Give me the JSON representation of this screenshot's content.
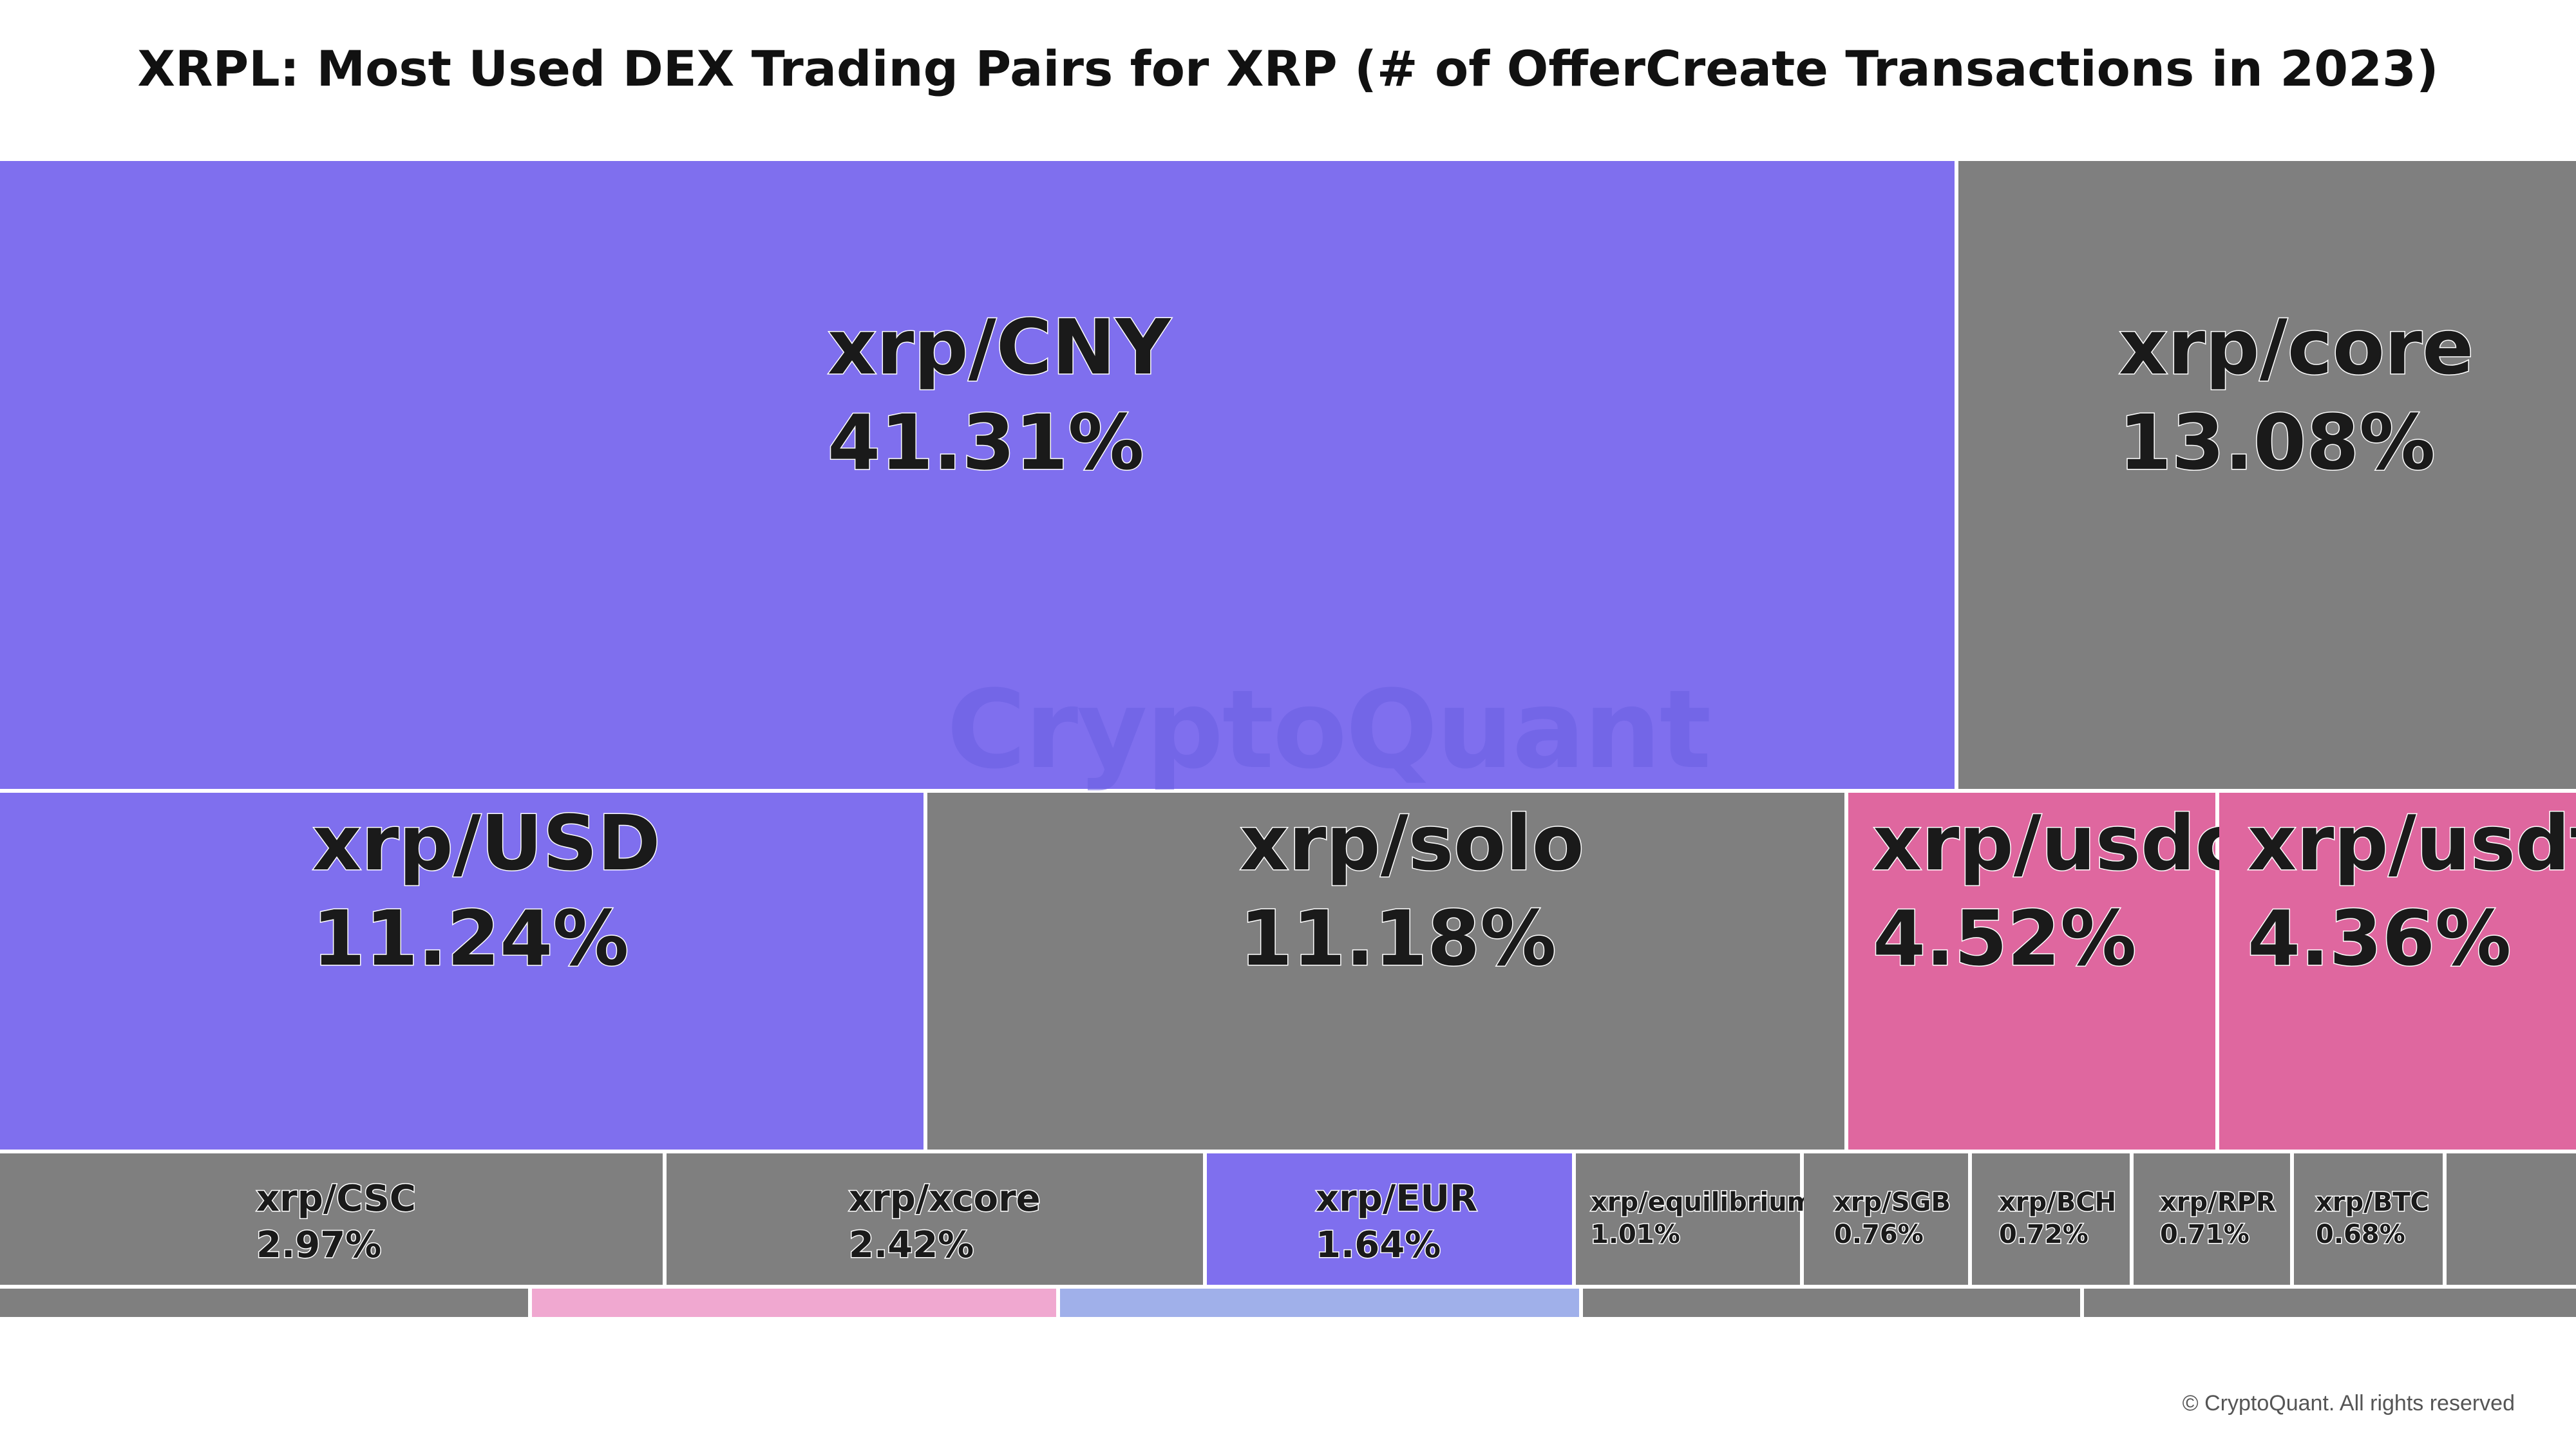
{
  "chart_data": {
    "type": "treemap",
    "title": "XRPL: Most Used DEX Trading Pairs for XRP (# of OfferCreate Transactions in 2023)",
    "unit": "% of OfferCreate Transactions",
    "items": [
      {
        "name": "xrp/CNY",
        "value": 41.31,
        "label": "41.31%",
        "color": "#7f6fee"
      },
      {
        "name": "xrp/core",
        "value": 13.08,
        "label": "13.08%",
        "color": "#7f7f7f"
      },
      {
        "name": "xrp/USD",
        "value": 11.24,
        "label": "11.24%",
        "color": "#7f6fee"
      },
      {
        "name": "xrp/solo",
        "value": 11.18,
        "label": "11.18%",
        "color": "#7f7f7f"
      },
      {
        "name": "xrp/usdc",
        "value": 4.52,
        "label": "4.52%",
        "color": "#df679f"
      },
      {
        "name": "xrp/usdt",
        "value": 4.36,
        "label": "4.36%",
        "color": "#df679f"
      },
      {
        "name": "xrp/CSC",
        "value": 2.97,
        "label": "2.97%",
        "color": "#7f7f7f"
      },
      {
        "name": "xrp/xcore",
        "value": 2.42,
        "label": "2.42%",
        "color": "#7f7f7f"
      },
      {
        "name": "xrp/EUR",
        "value": 1.64,
        "label": "1.64%",
        "color": "#7f6fee"
      },
      {
        "name": "xrp/equilibrium",
        "value": 1.01,
        "label": "1.01%",
        "color": "#7f7f7f"
      },
      {
        "name": "xrp/SGB",
        "value": 0.76,
        "label": "0.76%",
        "color": "#7f7f7f"
      },
      {
        "name": "xrp/BCH",
        "value": 0.72,
        "label": "0.72%",
        "color": "#7f7f7f"
      },
      {
        "name": "xrp/RPR",
        "value": 0.71,
        "label": "0.71%",
        "color": "#7f7f7f"
      },
      {
        "name": "xrp/BTC",
        "value": 0.68,
        "label": "0.68%",
        "color": "#7f7f7f"
      }
    ],
    "unlabeled_tiles": [
      {
        "color": "#7f7f7f"
      },
      {
        "color": "#7f7f7f"
      },
      {
        "color": "#f0a8d0"
      },
      {
        "color": "#a0b0ea"
      },
      {
        "color": "#7f7f7f"
      },
      {
        "color": "#7f7f7f"
      }
    ]
  },
  "watermark": "CryptoQuant",
  "copyright": "© CryptoQuant. All rights reserved"
}
